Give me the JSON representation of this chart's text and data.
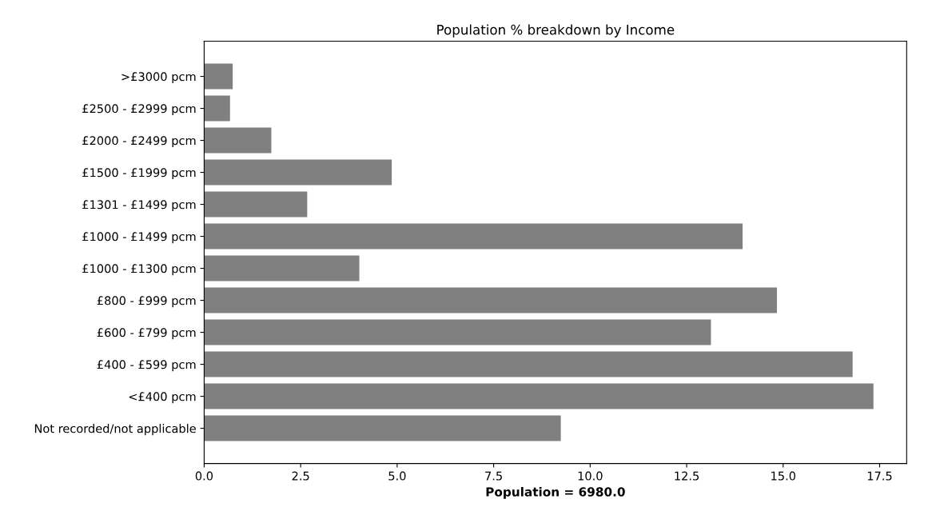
{
  "chart_data": {
    "type": "bar",
    "orientation": "horizontal",
    "title": "Population % breakdown by Income",
    "xlabel": "Population = 6980.0",
    "categories": [
      ">£3000 pcm",
      "£2500 - £2999 pcm",
      "£2000 - £2499 pcm",
      "£1500 - £1999 pcm",
      "£1301 - £1499 pcm",
      "£1000 - £1499 pcm",
      "£1000 - £1300 pcm",
      "£800 - £999 pcm",
      "£600 - £799 pcm",
      "£400 - £599 pcm",
      "<£400 pcm",
      "Not recorded/not applicable"
    ],
    "values": [
      0.74,
      0.67,
      1.74,
      4.86,
      2.67,
      13.95,
      4.02,
      14.84,
      13.13,
      16.8,
      17.34,
      9.24
    ],
    "color": "#808080",
    "xlim": [
      0,
      18.2
    ],
    "xticks": [
      {
        "value": 0,
        "label": "0.0"
      },
      2.5,
      {
        "value": 5,
        "label": "5.0"
      },
      7.5,
      {
        "value": 10,
        "label": "10.0"
      },
      12.5,
      {
        "value": 15,
        "label": "15.0"
      },
      17.5
    ],
    "grid": false,
    "legend": false
  }
}
